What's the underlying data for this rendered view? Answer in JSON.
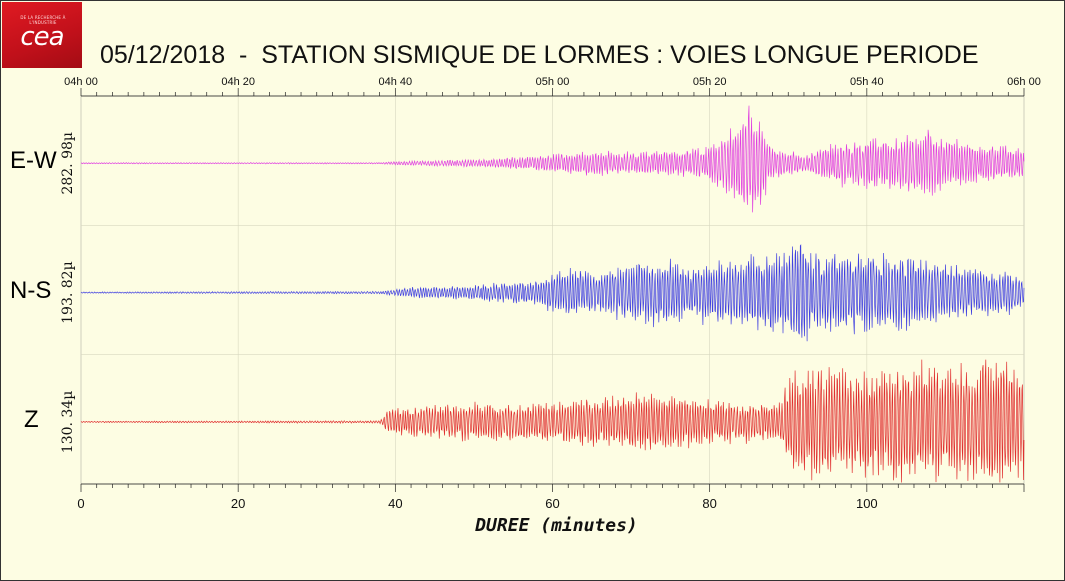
{
  "logo": {
    "text": "cea",
    "tagline": "DE LA RECHERCHE À L'INDUSTRIE"
  },
  "title": "05/12/2018  -  STATION SISMIQUE DE LORMES : VOIES LONGUE PERIODE",
  "chart_data": {
    "type": "line",
    "title": "05/12/2018  -  STATION SISMIQUE DE LORMES : VOIES LONGUE PERIODE",
    "xlabel": "DUREE (minutes)",
    "xlim": [
      0,
      120
    ],
    "x_ticks": [
      0,
      20,
      40,
      60,
      80,
      100
    ],
    "top_axis_ticks": [
      "04h 00",
      "04h 20",
      "04h 40",
      "05h 00",
      "05h 20",
      "05h 40",
      "06h 00"
    ],
    "grid": true,
    "series": [
      {
        "name": "E-W",
        "scale_label": "282. 98µ",
        "color": "#e040e0",
        "envelope": [
          [
            0,
            0.01
          ],
          [
            38,
            0.01
          ],
          [
            40,
            0.03
          ],
          [
            50,
            0.06
          ],
          [
            58,
            0.12
          ],
          [
            64,
            0.2
          ],
          [
            70,
            0.18
          ],
          [
            76,
            0.2
          ],
          [
            80,
            0.3
          ],
          [
            83,
            0.55
          ],
          [
            85,
            1.0
          ],
          [
            86.5,
            0.7
          ],
          [
            88,
            0.25
          ],
          [
            92,
            0.15
          ],
          [
            96,
            0.35
          ],
          [
            100,
            0.4
          ],
          [
            104,
            0.45
          ],
          [
            108,
            0.6
          ],
          [
            110,
            0.4
          ],
          [
            115,
            0.3
          ],
          [
            120,
            0.25
          ]
        ]
      },
      {
        "name": "N-S",
        "scale_label": "193. 82µ",
        "color": "#4040e0",
        "envelope": [
          [
            0,
            0.01
          ],
          [
            38,
            0.02
          ],
          [
            42,
            0.08
          ],
          [
            50,
            0.12
          ],
          [
            58,
            0.2
          ],
          [
            62,
            0.45
          ],
          [
            66,
            0.35
          ],
          [
            70,
            0.5
          ],
          [
            74,
            0.55
          ],
          [
            78,
            0.45
          ],
          [
            84,
            0.6
          ],
          [
            90,
            0.7
          ],
          [
            91.5,
            1.0
          ],
          [
            93,
            0.6
          ],
          [
            97,
            0.7
          ],
          [
            102,
            0.6
          ],
          [
            106,
            0.6
          ],
          [
            110,
            0.45
          ],
          [
            115,
            0.4
          ],
          [
            120,
            0.3
          ]
        ]
      },
      {
        "name": "Z",
        "scale_label": "130. 34µ",
        "color": "#e03030",
        "envelope": [
          [
            0,
            0.01
          ],
          [
            38,
            0.02
          ],
          [
            39,
            0.2
          ],
          [
            42,
            0.25
          ],
          [
            50,
            0.3
          ],
          [
            58,
            0.3
          ],
          [
            62,
            0.35
          ],
          [
            66,
            0.4
          ],
          [
            72,
            0.45
          ],
          [
            80,
            0.35
          ],
          [
            89,
            0.3
          ],
          [
            90,
            0.8
          ],
          [
            95,
            0.9
          ],
          [
            100,
            0.85
          ],
          [
            106,
            0.95
          ],
          [
            110,
            0.9
          ],
          [
            114,
            1.0
          ],
          [
            118,
            1.0
          ],
          [
            120,
            0.9
          ]
        ]
      }
    ]
  }
}
